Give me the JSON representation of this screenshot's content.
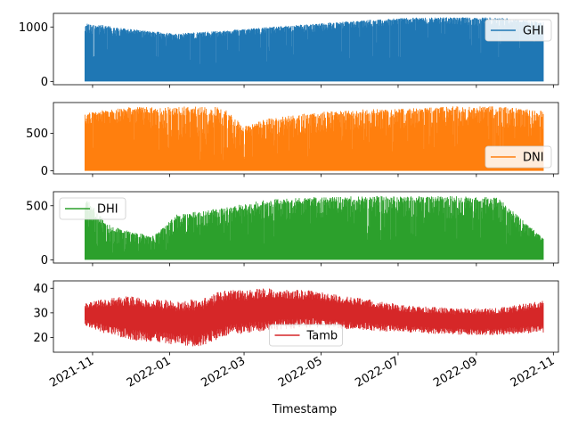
{
  "chart_data": {
    "type": "area",
    "xlabel": "Timestamp",
    "x_range": [
      "2021-10-01",
      "2022-11-05"
    ],
    "data_start": "2021-10-26",
    "data_end": "2022-10-24",
    "x_ticks": [
      "2021-11",
      "2022-01",
      "2022-03",
      "2022-05",
      "2022-07",
      "2022-09",
      "2022-11"
    ],
    "grid": false,
    "panels": [
      {
        "name": "GHI",
        "color": "#1f77b4",
        "legend_position": "upper-right",
        "ylim": [
          -60,
          1250
        ],
        "yticks": [
          0,
          1000
        ],
        "envelope": {
          "low": [
            [
              0.0,
              0
            ],
            [
              1.0,
              0
            ]
          ],
          "high": [
            [
              0.0,
              1080
            ],
            [
              0.1,
              960
            ],
            [
              0.2,
              880
            ],
            [
              0.3,
              930
            ],
            [
              0.4,
              1000
            ],
            [
              0.5,
              1060
            ],
            [
              0.6,
              1120
            ],
            [
              0.7,
              1170
            ],
            [
              0.8,
              1180
            ],
            [
              0.9,
              1180
            ],
            [
              1.0,
              1090
            ]
          ],
          "spikes_low": [
            [
              0.0,
              860
            ],
            [
              0.1,
              820
            ],
            [
              0.2,
              760
            ],
            [
              0.3,
              820
            ],
            [
              0.4,
              880
            ],
            [
              0.5,
              900
            ],
            [
              0.6,
              980
            ],
            [
              0.7,
              1050
            ],
            [
              0.8,
              1050
            ],
            [
              0.9,
              1000
            ],
            [
              1.0,
              900
            ]
          ]
        }
      },
      {
        "name": "DNI",
        "color": "#ff7f0e",
        "legend_position": "lower-right",
        "ylim": [
          -40,
          910
        ],
        "yticks": [
          0,
          500
        ],
        "envelope": {
          "low": [
            [
              0.0,
              0
            ],
            [
              1.0,
              0
            ]
          ],
          "high": [
            [
              0.0,
              780
            ],
            [
              0.1,
              850
            ],
            [
              0.2,
              860
            ],
            [
              0.3,
              850
            ],
            [
              0.35,
              600
            ],
            [
              0.4,
              700
            ],
            [
              0.5,
              780
            ],
            [
              0.6,
              820
            ],
            [
              0.7,
              830
            ],
            [
              0.8,
              860
            ],
            [
              0.9,
              860
            ],
            [
              1.0,
              800
            ]
          ],
          "spikes_low": [
            [
              0.0,
              600
            ],
            [
              0.1,
              650
            ],
            [
              0.2,
              420
            ],
            [
              0.3,
              300
            ],
            [
              0.35,
              250
            ],
            [
              0.4,
              380
            ],
            [
              0.5,
              500
            ],
            [
              0.6,
              550
            ],
            [
              0.7,
              560
            ],
            [
              0.8,
              580
            ],
            [
              0.9,
              580
            ],
            [
              1.0,
              520
            ]
          ]
        }
      },
      {
        "name": "DHI",
        "color": "#2ca02c",
        "legend_position": "upper-left",
        "ylim": [
          -30,
          630
        ],
        "yticks": [
          0,
          500
        ],
        "envelope": {
          "low": [
            [
              0.0,
              0
            ],
            [
              1.0,
              0
            ]
          ],
          "high": [
            [
              0.0,
              580
            ],
            [
              0.05,
              330
            ],
            [
              0.1,
              260
            ],
            [
              0.15,
              220
            ],
            [
              0.2,
              420
            ],
            [
              0.3,
              480
            ],
            [
              0.4,
              560
            ],
            [
              0.5,
              580
            ],
            [
              0.6,
              590
            ],
            [
              0.7,
              590
            ],
            [
              0.8,
              590
            ],
            [
              0.9,
              580
            ],
            [
              1.0,
              200
            ]
          ],
          "spikes_low": [
            [
              0.0,
              200
            ],
            [
              0.05,
              150
            ],
            [
              0.1,
              140
            ],
            [
              0.15,
              150
            ],
            [
              0.2,
              220
            ],
            [
              0.3,
              300
            ],
            [
              0.4,
              360
            ],
            [
              0.5,
              390
            ],
            [
              0.6,
              400
            ],
            [
              0.7,
              400
            ],
            [
              0.8,
              380
            ],
            [
              0.9,
              360
            ],
            [
              1.0,
              150
            ]
          ]
        }
      },
      {
        "name": "Tamb",
        "color": "#d62728",
        "legend_position": "lower-center",
        "ylim": [
          14,
          43
        ],
        "yticks": [
          20,
          30,
          40
        ],
        "envelope": {
          "low": [
            [
              0.0,
              25
            ],
            [
              0.05,
              21
            ],
            [
              0.1,
              19
            ],
            [
              0.2,
              17
            ],
            [
              0.25,
              16
            ],
            [
              0.3,
              20
            ],
            [
              0.4,
              23
            ],
            [
              0.5,
              24
            ],
            [
              0.6,
              23
            ],
            [
              0.7,
              22
            ],
            [
              0.8,
              21
            ],
            [
              0.9,
              21
            ],
            [
              1.0,
              22
            ]
          ],
          "high": [
            [
              0.0,
              34
            ],
            [
              0.05,
              36
            ],
            [
              0.1,
              37
            ],
            [
              0.2,
              35
            ],
            [
              0.25,
              36
            ],
            [
              0.3,
              39
            ],
            [
              0.4,
              40
            ],
            [
              0.5,
              39
            ],
            [
              0.6,
              36
            ],
            [
              0.7,
              33
            ],
            [
              0.8,
              32
            ],
            [
              0.9,
              32
            ],
            [
              1.0,
              35
            ]
          ]
        }
      }
    ]
  }
}
